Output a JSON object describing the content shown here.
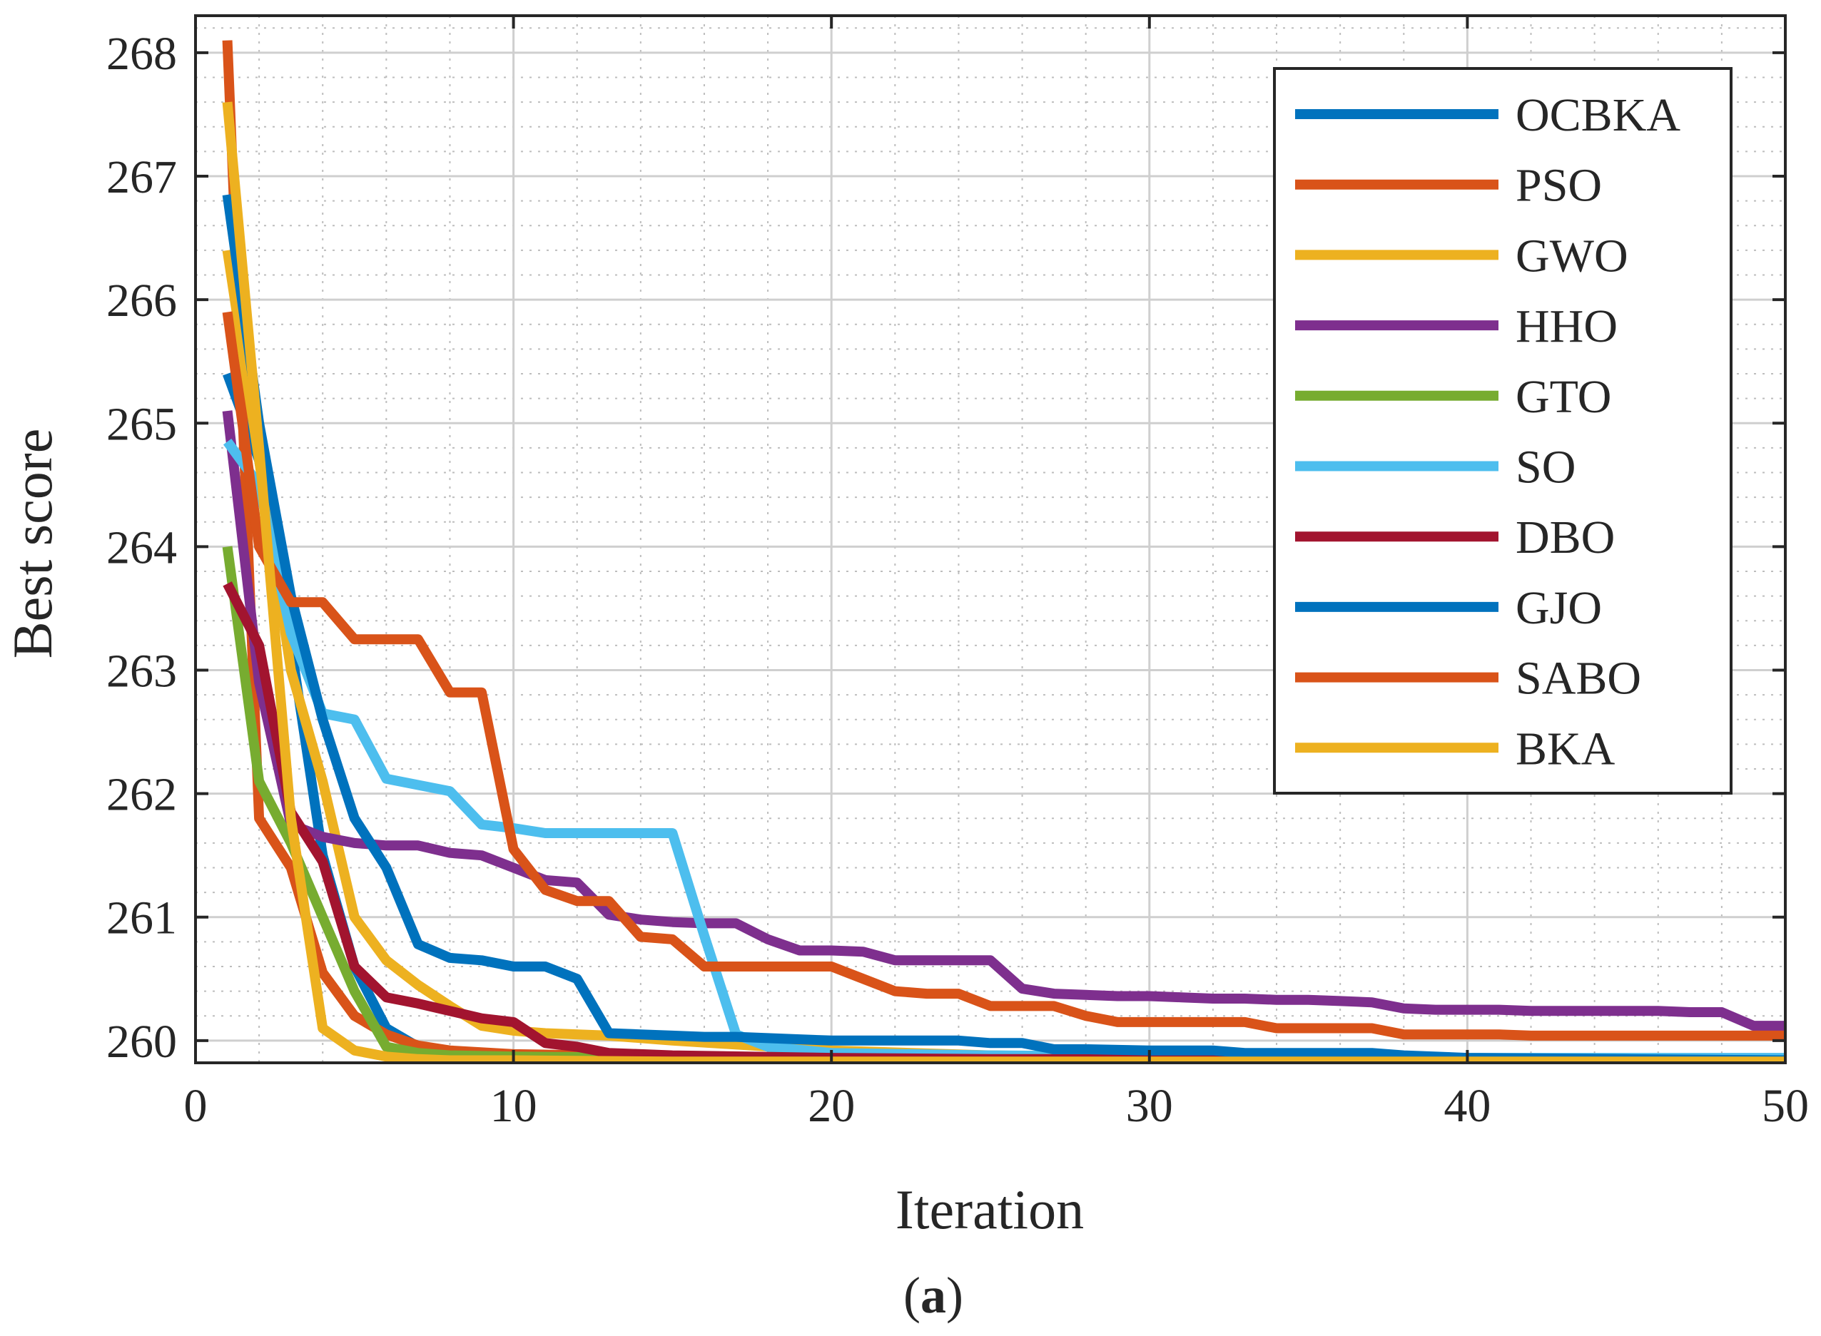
{
  "chart_data": {
    "type": "line",
    "xlabel": "Iteration",
    "ylabel": "Best score",
    "xlim": [
      0,
      50
    ],
    "ylim": [
      259.82,
      268.3
    ],
    "xticks": [
      0,
      10,
      20,
      30,
      40,
      50
    ],
    "yticks": [
      260,
      261,
      262,
      263,
      264,
      265,
      266,
      267,
      268
    ],
    "grid": true,
    "minor_grid": true,
    "legend_position": "top-right",
    "caption_open": "(",
    "caption_letter": "a",
    "caption_close": ")",
    "series": [
      {
        "name": "OCBKA",
        "color": "#0072BD",
        "x": [
          1,
          2,
          3,
          4,
          5,
          6,
          7,
          8,
          9,
          10,
          15,
          20,
          25,
          30,
          40,
          50
        ],
        "y": [
          265.4,
          264.7,
          263.2,
          261.5,
          260.6,
          260.1,
          259.95,
          259.9,
          259.88,
          259.86,
          259.84,
          259.83,
          259.83,
          259.83,
          259.83,
          259.83
        ]
      },
      {
        "name": "PSO",
        "color": "#D95319",
        "x": [
          1,
          2,
          3,
          4,
          5,
          6,
          7,
          8,
          10,
          15,
          20,
          25,
          30,
          40,
          50
        ],
        "y": [
          268.1,
          261.8,
          261.4,
          260.55,
          260.2,
          260.05,
          259.96,
          259.92,
          259.89,
          259.87,
          259.86,
          259.86,
          259.85,
          259.85,
          259.85
        ]
      },
      {
        "name": "GWO",
        "color": "#EDB120",
        "x": [
          1,
          2,
          3,
          4,
          5,
          6,
          7,
          8,
          9,
          10,
          11,
          13,
          15,
          20,
          25,
          30,
          40,
          50
        ],
        "y": [
          266.4,
          264.7,
          263.0,
          262.1,
          261.0,
          260.65,
          260.45,
          260.28,
          260.12,
          260.08,
          260.06,
          260.04,
          260.0,
          259.92,
          259.88,
          259.86,
          259.84,
          259.83
        ]
      },
      {
        "name": "HHO",
        "color": "#7E2F8E",
        "x": [
          1,
          2,
          3,
          4,
          5,
          6,
          7,
          8,
          9,
          10,
          11,
          12,
          13,
          14,
          15,
          16,
          17,
          18,
          19,
          20,
          21,
          22,
          23,
          24,
          25,
          26,
          27,
          28,
          29,
          30,
          31,
          32,
          33,
          34,
          35,
          36,
          37,
          38,
          39,
          40,
          41,
          42,
          43,
          44,
          45,
          46,
          47,
          48,
          49,
          50
        ],
        "y": [
          265.1,
          262.9,
          261.75,
          261.65,
          261.6,
          261.58,
          261.58,
          261.52,
          261.5,
          261.4,
          261.3,
          261.28,
          261.02,
          260.98,
          260.96,
          260.95,
          260.95,
          260.82,
          260.73,
          260.73,
          260.72,
          260.65,
          260.65,
          260.65,
          260.65,
          260.42,
          260.38,
          260.37,
          260.36,
          260.36,
          260.35,
          260.34,
          260.34,
          260.33,
          260.33,
          260.32,
          260.31,
          260.26,
          260.25,
          260.25,
          260.25,
          260.24,
          260.24,
          260.24,
          260.24,
          260.24,
          260.23,
          260.23,
          260.12,
          260.12
        ]
      },
      {
        "name": "GTO",
        "color": "#77AC30",
        "x": [
          1,
          2,
          3,
          4,
          5,
          6,
          7,
          8,
          10,
          15,
          20,
          30,
          40,
          50
        ],
        "y": [
          264.0,
          262.1,
          261.6,
          261.0,
          260.4,
          259.95,
          259.9,
          259.88,
          259.87,
          259.86,
          259.85,
          259.84,
          259.84,
          259.84
        ]
      },
      {
        "name": "SO",
        "color": "#4DBEEE",
        "x": [
          1,
          2,
          3,
          4,
          5,
          6,
          7,
          8,
          9,
          10,
          11,
          12,
          13,
          14,
          15,
          16,
          17,
          18,
          20,
          25,
          30,
          40,
          50
        ],
        "y": [
          264.85,
          264.5,
          263.3,
          262.65,
          262.6,
          262.12,
          262.07,
          262.02,
          261.75,
          261.72,
          261.68,
          261.68,
          261.68,
          261.68,
          261.68,
          260.85,
          260.05,
          259.95,
          259.9,
          259.88,
          259.87,
          259.86,
          259.86
        ]
      },
      {
        "name": "DBO",
        "color": "#A2142F",
        "x": [
          1,
          2,
          3,
          4,
          5,
          6,
          7,
          8,
          9,
          10,
          11,
          12,
          13,
          15,
          20,
          25,
          30,
          40,
          50
        ],
        "y": [
          263.7,
          263.2,
          261.85,
          261.45,
          260.6,
          260.35,
          260.3,
          260.24,
          260.18,
          260.15,
          259.98,
          259.95,
          259.9,
          259.88,
          259.86,
          259.85,
          259.85,
          259.84,
          259.84
        ]
      },
      {
        "name": "GJO",
        "color": "#0072BD",
        "x": [
          1,
          2,
          3,
          4,
          5,
          6,
          7,
          8,
          9,
          10,
          11,
          12,
          13,
          14,
          15,
          16,
          17,
          18,
          19,
          20,
          21,
          22,
          23,
          24,
          25,
          26,
          27,
          28,
          30,
          32,
          33,
          35,
          37,
          38,
          40,
          45,
          50
        ],
        "y": [
          266.85,
          265.0,
          263.6,
          262.6,
          261.8,
          261.4,
          260.78,
          260.67,
          260.65,
          260.6,
          260.6,
          260.5,
          260.06,
          260.05,
          260.04,
          260.03,
          260.03,
          260.02,
          260.01,
          260.0,
          260.0,
          260.0,
          260.0,
          260.0,
          259.98,
          259.98,
          259.93,
          259.93,
          259.92,
          259.92,
          259.9,
          259.9,
          259.9,
          259.88,
          259.86,
          259.85,
          259.84
        ]
      },
      {
        "name": "SABO",
        "color": "#D95319",
        "x": [
          1,
          2,
          3,
          4,
          5,
          6,
          7,
          8,
          9,
          10,
          11,
          12,
          13,
          14,
          15,
          16,
          17,
          18,
          19,
          20,
          21,
          22,
          23,
          24,
          25,
          26,
          27,
          28,
          29,
          30,
          31,
          32,
          33,
          34,
          35,
          36,
          37,
          38,
          39,
          40,
          41,
          42,
          43,
          44,
          45,
          46,
          47,
          48,
          49,
          50
        ],
        "y": [
          265.9,
          264.0,
          263.55,
          263.55,
          263.25,
          263.25,
          263.25,
          262.82,
          262.82,
          261.55,
          261.22,
          261.13,
          261.13,
          260.84,
          260.82,
          260.6,
          260.6,
          260.6,
          260.6,
          260.6,
          260.5,
          260.4,
          260.38,
          260.38,
          260.28,
          260.28,
          260.28,
          260.2,
          260.15,
          260.15,
          260.15,
          260.15,
          260.15,
          260.1,
          260.1,
          260.1,
          260.1,
          260.05,
          260.05,
          260.05,
          260.05,
          260.04,
          260.04,
          260.04,
          260.04,
          260.04,
          260.04,
          260.04,
          260.04,
          260.04
        ]
      },
      {
        "name": "BKA",
        "color": "#EDB120",
        "x": [
          1,
          2,
          3,
          4,
          5,
          6,
          7,
          8,
          10,
          15,
          20,
          30,
          40,
          50
        ],
        "y": [
          267.6,
          264.8,
          261.8,
          260.1,
          259.92,
          259.87,
          259.85,
          259.84,
          259.84,
          259.83,
          259.83,
          259.83,
          259.83,
          259.83
        ]
      }
    ]
  }
}
